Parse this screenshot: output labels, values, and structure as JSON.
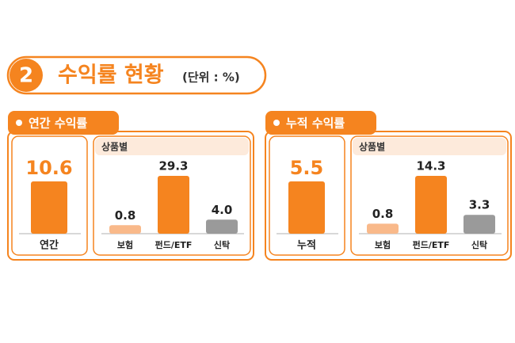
{
  "header": {
    "number": "2",
    "title": "수익률 현황",
    "unit": "(단위 : %)"
  },
  "chart_data": [
    {
      "type": "bar",
      "title": "연간 수익률",
      "categories": [
        "연간"
      ],
      "values": [
        10.6
      ],
      "color": "#f5841f",
      "breakdown": {
        "type": "bar",
        "title": "상품별",
        "categories": [
          "보험",
          "펀드/ETF",
          "신탁"
        ],
        "values": [
          0.8,
          29.3,
          4.0
        ],
        "value_labels": [
          "0.8",
          "29.3",
          "4.0"
        ],
        "colors": [
          "#f9b98a",
          "#f5841f",
          "#9a9a9a"
        ]
      }
    },
    {
      "type": "bar",
      "title": "누적 수익률",
      "categories": [
        "누적"
      ],
      "values": [
        5.5
      ],
      "color": "#f5841f",
      "breakdown": {
        "type": "bar",
        "title": "상품별",
        "categories": [
          "보험",
          "펀드/ETF",
          "신탁"
        ],
        "values": [
          0.8,
          14.3,
          3.3
        ],
        "colors": [
          "#f9b98a",
          "#f5841f",
          "#9a9a9a"
        ]
      }
    }
  ]
}
